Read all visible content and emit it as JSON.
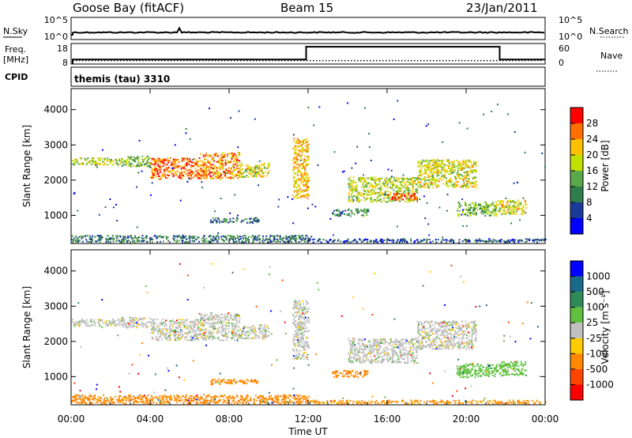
{
  "header": {
    "station": "Goose Bay (fitACF)",
    "beam": "Beam 15",
    "date": "23/Jan/2011"
  },
  "noise_panel": {
    "left_label": "N.Sky",
    "left_ticks": [
      "10^5",
      "10^0"
    ],
    "right_label": "N.Search",
    "right_ticks": [
      "10^5",
      "10^0"
    ]
  },
  "freq_panel": {
    "left_label_1": "Freq.",
    "left_label_2": "[MHz]",
    "left_ticks": [
      "18",
      "8"
    ],
    "right_label": "Nave",
    "right_ticks": [
      "60",
      "0"
    ]
  },
  "cpid_panel": {
    "label": "CPID",
    "program": "themis (tau) 3310"
  },
  "colors": {
    "grey": "#c0c0c0"
  },
  "chart_data": [
    {
      "type": "heatmap",
      "name": "power",
      "xlabel": "Time UT",
      "ylabel": "Slant Range [km]",
      "x_ticks": [
        "00:00",
        "04:00",
        "08:00",
        "12:00",
        "16:00",
        "20:00",
        "00:00"
      ],
      "y_ticks": [
        "1000",
        "2000",
        "3000",
        "4000"
      ],
      "xlim": [
        0,
        24
      ],
      "ylim": [
        200,
        4600
      ],
      "colorbar": {
        "label": "Power [dB]",
        "ticks": [
          "4",
          "8",
          "12",
          "16",
          "20",
          "24",
          "28"
        ],
        "colors": [
          "#0000ff",
          "#1a3a99",
          "#2e7d4a",
          "#5aa84a",
          "#bfe000",
          "#ffc000",
          "#ff7000",
          "#ff0000"
        ]
      },
      "echo_bands": [
        {
          "t0": 0.0,
          "t1": 2.5,
          "r0": 2450,
          "r1": 2650,
          "level": 0.55
        },
        {
          "t0": 2.5,
          "t1": 4.0,
          "r0": 2400,
          "r1": 2700,
          "level": 0.45
        },
        {
          "t0": 4.0,
          "t1": 6.5,
          "r0": 2050,
          "r1": 2650,
          "level": 0.8
        },
        {
          "t0": 6.5,
          "t1": 8.5,
          "r0": 2050,
          "r1": 2800,
          "level": 0.75
        },
        {
          "t0": 8.5,
          "t1": 10.0,
          "r0": 2100,
          "r1": 2500,
          "level": 0.6
        },
        {
          "t0": 7.0,
          "t1": 9.5,
          "r0": 800,
          "r1": 950,
          "level": 0.3
        },
        {
          "t0": 11.2,
          "t1": 12.0,
          "r0": 1500,
          "r1": 3200,
          "level": 0.7
        },
        {
          "t0": 13.2,
          "t1": 15.0,
          "r0": 1000,
          "r1": 1200,
          "level": 0.35
        },
        {
          "t0": 14.0,
          "t1": 17.5,
          "r0": 1400,
          "r1": 2100,
          "level": 0.55
        },
        {
          "t0": 16.0,
          "t1": 17.5,
          "r0": 1450,
          "r1": 1650,
          "level": 0.85
        },
        {
          "t0": 17.5,
          "t1": 20.5,
          "r0": 1800,
          "r1": 2600,
          "level": 0.6
        },
        {
          "t0": 19.5,
          "t1": 21.5,
          "r0": 1000,
          "r1": 1400,
          "level": 0.45
        },
        {
          "t0": 21.5,
          "t1": 23.0,
          "r0": 1050,
          "r1": 1450,
          "level": 0.6
        },
        {
          "t0": 0.0,
          "t1": 12.0,
          "r0": 250,
          "r1": 450,
          "level": 0.3
        },
        {
          "t0": 12.0,
          "t1": 24.0,
          "r0": 250,
          "r1": 350,
          "level": 0.2
        }
      ]
    },
    {
      "type": "heatmap",
      "name": "velocity",
      "xlabel": "Time UT",
      "ylabel": "Slant Range [km]",
      "x_ticks": [
        "00:00",
        "04:00",
        "08:00",
        "12:00",
        "16:00",
        "20:00",
        "00:00"
      ],
      "y_ticks": [
        "1000",
        "2000",
        "3000",
        "4000"
      ],
      "xlim": [
        0,
        24
      ],
      "ylim": [
        200,
        4600
      ],
      "colorbar": {
        "label": "Velocity [m s⁻¹]",
        "ticks": [
          "1000",
          "500",
          "100",
          "25",
          "-25",
          "-100",
          "-500",
          "-1000"
        ],
        "colors": [
          "#0000ff",
          "#1a6a8a",
          "#2e8b57",
          "#60c040",
          "#c0c0c0",
          "#ffcc00",
          "#ff8800",
          "#ff4400",
          "#ff0000"
        ]
      },
      "echo_bands": [
        {
          "t0": 0.0,
          "t1": 2.5,
          "r0": 2450,
          "r1": 2650,
          "v": 0
        },
        {
          "t0": 2.5,
          "t1": 4.0,
          "r0": 2400,
          "r1": 2700,
          "v": 0
        },
        {
          "t0": 4.0,
          "t1": 6.5,
          "r0": 2050,
          "r1": 2650,
          "v": 0
        },
        {
          "t0": 6.5,
          "t1": 8.5,
          "r0": 2050,
          "r1": 2800,
          "v": 0
        },
        {
          "t0": 8.5,
          "t1": 10.0,
          "r0": 2100,
          "r1": 2500,
          "v": 0
        },
        {
          "t0": 7.0,
          "t1": 9.5,
          "r0": 800,
          "r1": 950,
          "v": -150
        },
        {
          "t0": 11.2,
          "t1": 12.0,
          "r0": 1500,
          "r1": 3200,
          "v": 0
        },
        {
          "t0": 13.2,
          "t1": 15.0,
          "r0": 1000,
          "r1": 1200,
          "v": -150
        },
        {
          "t0": 14.0,
          "t1": 17.5,
          "r0": 1400,
          "r1": 2100,
          "v": 0
        },
        {
          "t0": 17.5,
          "t1": 20.5,
          "r0": 1800,
          "r1": 2600,
          "v": 0
        },
        {
          "t0": 19.5,
          "t1": 21.5,
          "r0": 1000,
          "r1": 1400,
          "v": 60
        },
        {
          "t0": 21.5,
          "t1": 23.0,
          "r0": 1050,
          "r1": 1450,
          "v": 60
        },
        {
          "t0": 0.0,
          "t1": 12.0,
          "r0": 250,
          "r1": 500,
          "v": -150
        },
        {
          "t0": 12.0,
          "t1": 24.0,
          "r0": 250,
          "r1": 350,
          "v": -120
        }
      ]
    }
  ],
  "series": {
    "freq_mhz": [
      {
        "t0": 0,
        "t1": 11.9,
        "f": 10.2
      },
      {
        "t0": 11.9,
        "t1": 21.7,
        "f": 16.4
      },
      {
        "t0": 21.7,
        "t1": 24,
        "f": 10.2
      }
    ],
    "nave": 10
  }
}
